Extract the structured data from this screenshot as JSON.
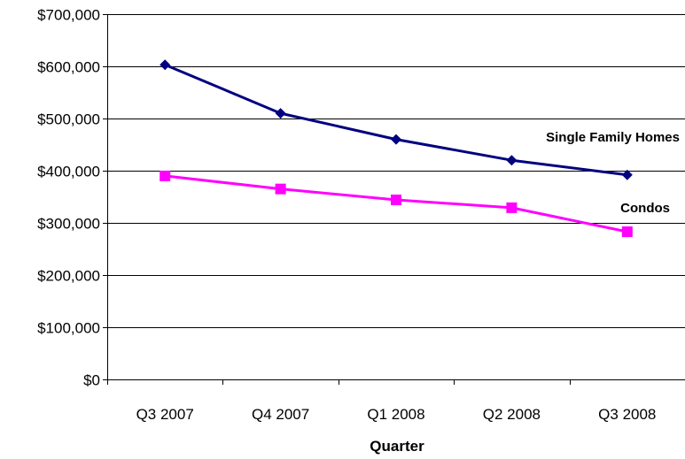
{
  "chart_data": {
    "type": "line",
    "title": "",
    "xlabel": "Quarter",
    "ylabel": "",
    "categories": [
      "Q3 2007",
      "Q4 2007",
      "Q1 2008",
      "Q2 2008",
      "Q3 2008"
    ],
    "ylim": [
      0,
      700000
    ],
    "yticks": [
      0,
      100000,
      200000,
      300000,
      400000,
      500000,
      600000,
      700000
    ],
    "ytick_labels": [
      "$0",
      "$100,000",
      "$200,000",
      "$300,000",
      "$400,000",
      "$500,000",
      "$600,000",
      "$700,000"
    ],
    "grid": true,
    "legend": "none",
    "series": [
      {
        "name": "Single Family Homes",
        "values": [
          603000,
          510000,
          460000,
          420000,
          392000
        ],
        "color": "#000080",
        "marker": "diamond"
      },
      {
        "name": "Condos",
        "values": [
          390000,
          365000,
          344000,
          329000,
          283000
        ],
        "color": "#FF00FF",
        "marker": "square"
      }
    ]
  }
}
